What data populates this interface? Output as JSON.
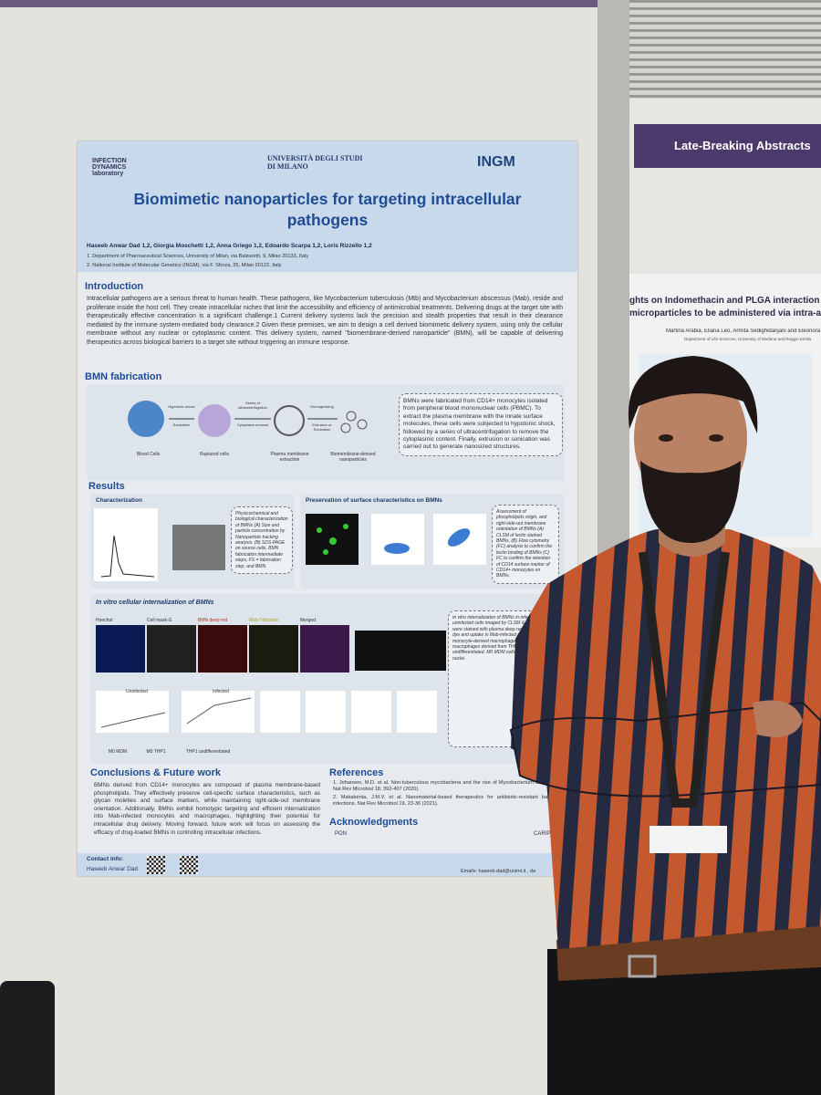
{
  "poster": {
    "logos": [
      "INFECTION DYNAMICS laboratory",
      "UNIVERSITÀ DEGLI STUDI DI MILANO",
      "INGM"
    ],
    "title": "Biomimetic nanoparticles for targeting intracellular pathogens",
    "authors": "Haseeb Anwar Dad 1,2, Giorgia Moschetti 1,2, Anna Griego 1,2, Edoardo Scarpa 1,2, Loris Rizzello 1,2",
    "affiliations": [
      "1. Department of Pharmaceutical Sciences, University of Milan, via Balzaretti, 9, Milan 20133, Italy",
      "2. National Institute of Molecular Genetics (INGM), via F. Sforza, 35, Milan 20122, Italy"
    ],
    "introduction": {
      "heading": "Introduction",
      "text": "Intracellular pathogens are a serious threat to human health. These pathogens, like Mycobacterium tuberculosis (Mtb) and Mycobacterium abscessus (Mab), reside and proliferate inside the host cell. They create intracellular niches that limit the accessibility and efficiency of antimicrobial treatments. Delivering drugs at the target site with therapeutically effective concentration is a significant challenge.1 Current delivery systems lack the precision and stealth properties that result in their clearance mediated by the immune system-mediated body clearance.2 Given these premises, we aim to design a cell derived biomimetic delivery system, using only the cellular membrane without any nuclear or cytoplasmic content. This delivery system, named \"biomembrane-derived nanoparticle\" (BMN), will be capable of delivering therapeutics across biological barriers to a target site without triggering an immune response."
    },
    "fabrication": {
      "heading": "BMN fabrication",
      "steps": [
        "Blood Cells",
        "Ruptured cells",
        "Plasma membrane extraction",
        "Biomembrane-derived nanoparticles"
      ],
      "arrows": [
        "Hypotonic shock",
        "Sonication",
        "Series of ultracentrifugation",
        "Cytoplasm removal",
        "Homogenizing",
        "Extrusion or Sonication"
      ],
      "text": "BMNs were fabricated from CD14+ monocytes isolated from peripheral blood mononuclear cells (PBMC). To extract the plasma membrane with the innate surface molecules, these cells were subjected to hypotonic shock, followed by a series of ultracentrifugation to remove the cytoplasmic content. Finally, extrusion or sonication was carried out to generate nanosized structures."
    },
    "results": {
      "heading": "Results",
      "panels": [
        {
          "title": "Characterization",
          "caption": "Physicochemical and biological characterization of BMNs (A) Size and particle concentration by Nanoparticle tracking analysis. (B) SDS-PAGE on source cells, BMN fabrication intermediate steps, FS = fabrication step, and BMN."
        },
        {
          "title": "Preservation of surface characteristics on BMNs",
          "caption": "Assessment of phospholipids origin, and right-side-out membrane orientation of BMNs (A) CLSM of lectin stained BMNs, (B) Flow cytometry (FC) analysis to confirm the lectin binding of BMNs (C) FC to confirm the retention of CD14 surface marker of CD14+ monocytes on BMNs."
        },
        {
          "title": "In vitro cellular internalization of BMNs",
          "caption": "In vitro internalization of BMNs in infected and uninfected cells imaged by CLSM & FC. BMNs were stained with plasma deep red fluorescent dye and uptake in Mab-infected and uninfected monocyte-derived macrophages, M0 macrophages derived from THP1, and THP1 undifferentiated. M0 MDM cells were stained for nuclei."
        }
      ],
      "legend": [
        "M0 MDM",
        "M0 THP1",
        "THP1 undifferentiated"
      ],
      "subpanels": [
        "Uninfected",
        "Infected"
      ],
      "channels": [
        "Hoechst",
        "Cell mask-G",
        "BMN deep red",
        "Mab-Tdtomato",
        "Merged"
      ]
    },
    "conclusions": {
      "heading": "Conclusions & Future work",
      "text": "BMNs derived from CD14+ monocytes are composed of plasma membrane-based phospholipids. They effectively preserve cell-specific surface characteristics, such as glycan moieties and surface markers, while maintaining right-side-out membrane orientation. Additionally, BMNs exhibit homotypic targeting and efficient internalization into Mab-infected monocytes and macrophages, highlighting their potential for intracellular drug delivery. Moving forward, future work will focus on assessing the efficacy of drug-loaded BMNs in controlling intracellular infections."
    },
    "references": {
      "heading": "References",
      "items": [
        "1. Johansen, M.D. et al. Non-tuberculous mycobacteria and the rise of Mycobacterium abscessus. Nat Rev Microbiol 18, 392-407 (2020).",
        "2. Makabenta, J.M.V. et al. Nanomaterial-based therapeutics for antibiotic-resistant bacterial infections. Nat Rev Microbiol 19, 23-36 (2021)."
      ]
    },
    "acknowledgments": {
      "heading": "Acknowledgments",
      "sponsors": [
        "PON",
        "CARIPLO"
      ]
    },
    "contact": {
      "heading": "Contact info:",
      "name": "Haseeb Anwar Dad",
      "email": "Emails: haseeb.dad@unimi.it , da"
    }
  },
  "neighbor_poster": {
    "banner": "Late-Breaking Abstracts",
    "title": [
      "ghts on Indomethacin and PLGA interaction f",
      "microparticles to be administered via intra-ar"
    ],
    "authors": "Martina Arabia, Eliana Leo, Armita Sedighidarijani and Eleonora Ma",
    "affiliation": "Department of Life Sciences, University of Modena and Reggio Emilia"
  }
}
